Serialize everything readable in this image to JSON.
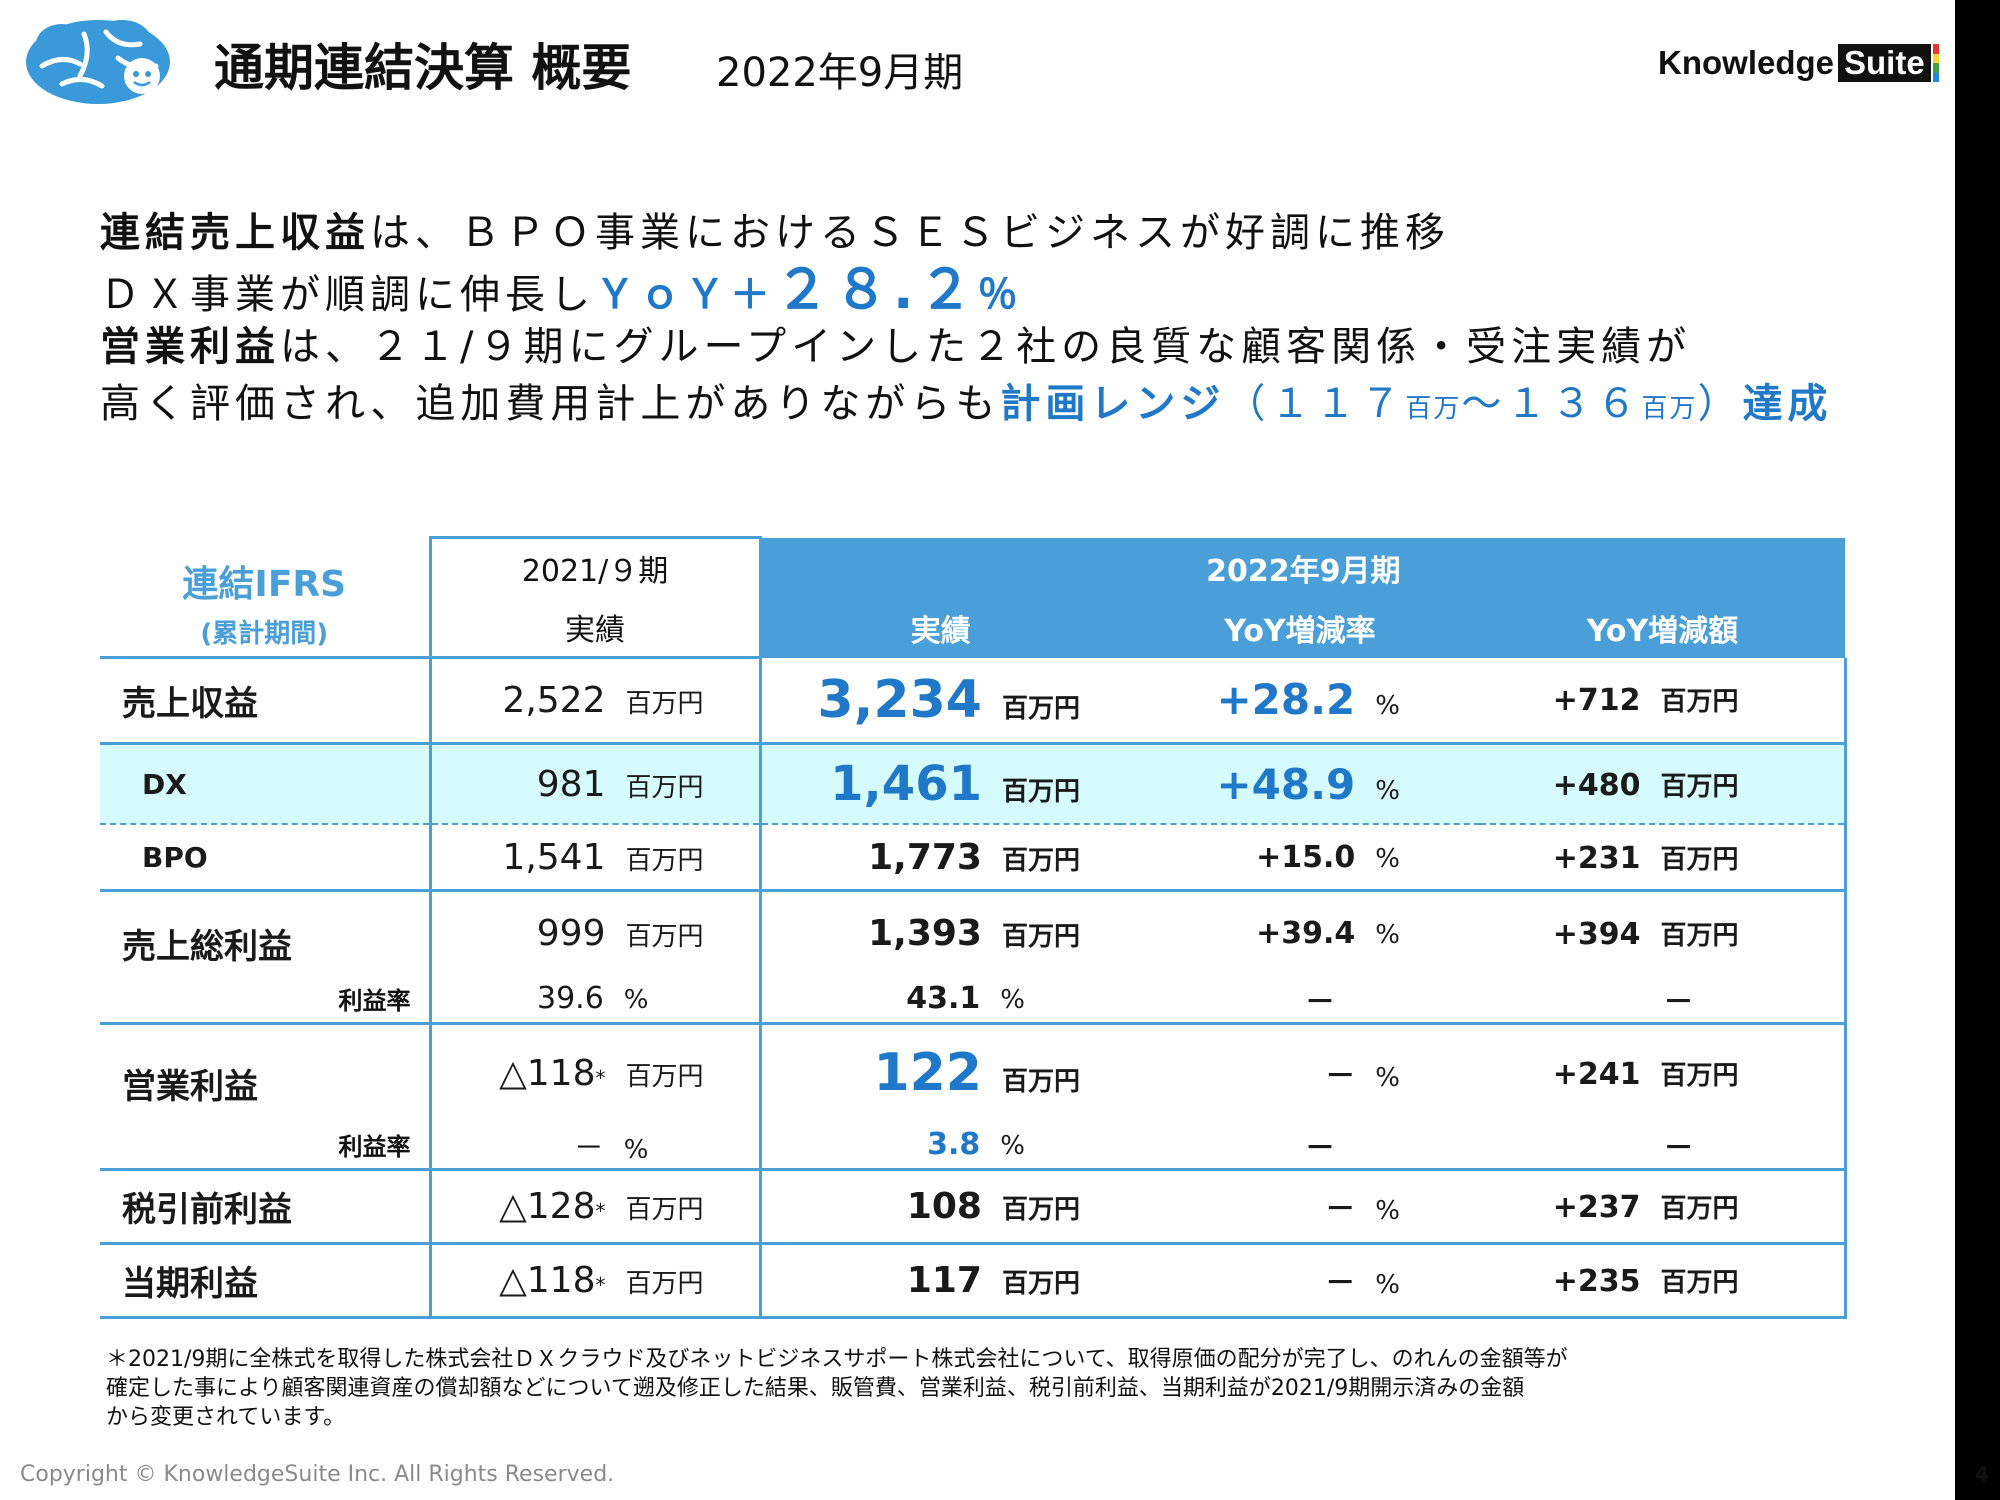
{
  "header": {
    "title": "通期連結決算 概要",
    "period": "2022年9月期",
    "brand_main": "Knowledge",
    "brand_box": "Suite"
  },
  "lead": {
    "l1_bold": "連結売上収益",
    "l1_rest": "は、ＢＰＯ事業におけるＳＥＳビジネスが好調に推移",
    "l2_text": "ＤＸ事業が順調に伸長し",
    "l2_yoy": "ＹｏＹ＋",
    "l2_num": "２８.２",
    "l2_pct": "％",
    "l3_bold": "営業利益",
    "l3_rest": "は、２１/９期にグループインした２社の良質な顧客関係・受注実績が",
    "l4_text": "高く評価され、追加費用計上がありながらも",
    "l4_range": "計画レンジ",
    "l4_paren_open": "（",
    "l4_n1": "１１７",
    "l4_u1": "百万",
    "l4_tilde": "～",
    "l4_n2": "１３６",
    "l4_u2": "百万",
    "l4_paren_close": "）",
    "l4_achieve": "達成"
  },
  "table": {
    "corner_title": "連結IFRS",
    "corner_sub": "(累計期間)",
    "prev_header_1": "2021/９期",
    "prev_header_2": "実績",
    "cur_header": "2022年9月期",
    "cur_col": "実績",
    "rate_col": "YoY増減率",
    "amt_col": "YoY増減額",
    "unit_m": "百万円",
    "unit_pct": "%",
    "star": "*",
    "dash": "－",
    "rows": [
      {
        "label": "売上収益",
        "prev": "2,522",
        "cur": "3,234",
        "rate": "+28.2",
        "amt": "+712"
      },
      {
        "label": "DX",
        "prev": "981",
        "cur": "1,461",
        "rate": "+48.9",
        "amt": "+480"
      },
      {
        "label": "BPO",
        "prev": "1,541",
        "cur": "1,773",
        "rate": "+15.0",
        "amt": "+231"
      },
      {
        "label": "売上総利益",
        "prev": "999",
        "cur": "1,393",
        "rate": "+39.4",
        "amt": "+394",
        "margin_label": "利益率",
        "prev_margin": "39.6",
        "cur_margin": "43.1"
      },
      {
        "label": "営業利益",
        "prev": "△118",
        "cur": "122",
        "rate": "－",
        "amt": "+241",
        "margin_label": "利益率",
        "prev_margin": "－",
        "cur_margin": "3.8"
      },
      {
        "label": "税引前利益",
        "prev": "△128",
        "cur": "108",
        "rate": "－",
        "amt": "+237"
      },
      {
        "label": "当期利益",
        "prev": "△118",
        "cur": "117",
        "rate": "－",
        "amt": "+235"
      }
    ]
  },
  "footnote": {
    "line1": "＊2021/9期に全株式を取得した株式会社ＤＸクラウド及びネットビジネスサポート株式会社について、取得原価の配分が完了し、のれんの金額等が",
    "line2": "確定した事により顧客関連資産の償却額などについて遡及修正した結果、販管費、営業利益、税引前利益、当期利益が2021/9期開示済みの金額",
    "line3": "から変更されています。"
  },
  "copyright": "Copyright © KnowledgeSuite Inc. All Rights Reserved.",
  "page_number": "4",
  "colors": {
    "accent": "#4a9fd8",
    "highlight_blue": "#1f78c8",
    "dx_row_bg": "#d5fbfd",
    "logo_blue": "#3a9ad9"
  }
}
